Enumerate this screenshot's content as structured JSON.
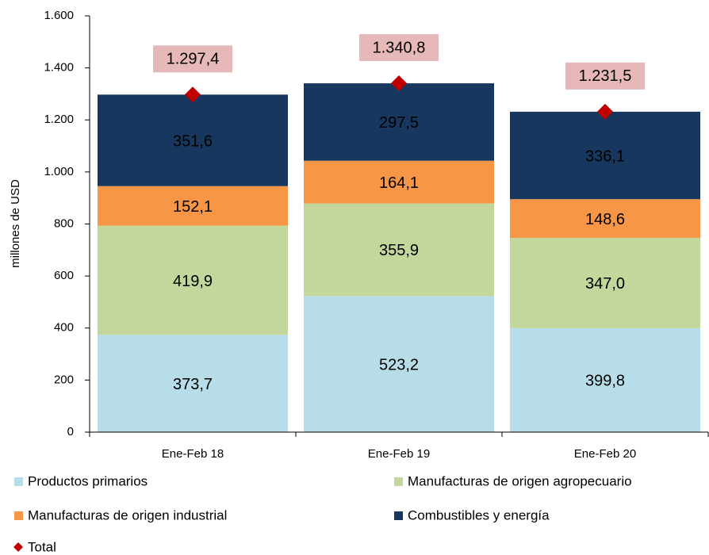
{
  "chart_data": {
    "type": "stacked-bar",
    "y_label": "millones de USD",
    "categories": [
      "Ene-Feb 18",
      "Ene-Feb 19",
      "Ene-Feb 20"
    ],
    "series": [
      {
        "name": "Productos primarios",
        "color": "#b7dde8",
        "values": [
          373.7,
          523.2,
          399.8
        ],
        "value_labels": [
          "373,7",
          "523,2",
          "399,8"
        ]
      },
      {
        "name": "Manufacturas de origen agropecuario",
        "color": "#c3d69b",
        "values": [
          419.9,
          355.9,
          347.0
        ],
        "value_labels": [
          "419,9",
          "355,9",
          "347,0"
        ]
      },
      {
        "name": "Manufacturas de origen industrial",
        "color": "#f79646",
        "values": [
          152.1,
          164.1,
          148.6
        ],
        "value_labels": [
          "152,1",
          "164,1",
          "148,6"
        ]
      },
      {
        "name": "Combustibles y energía",
        "color": "#17375e",
        "values": [
          351.6,
          297.5,
          336.1
        ],
        "value_labels": [
          "351,6",
          "297,5",
          "336,1"
        ]
      },
      {
        "name": "Total",
        "type": "marker",
        "color": "#c00000",
        "values": [
          1297.4,
          1340.8,
          1231.5
        ],
        "value_labels": [
          "1.297,4",
          "1.340,8",
          "1.231,5"
        ]
      }
    ],
    "ylim": [
      0,
      1600
    ],
    "yticks": [
      0,
      200,
      400,
      600,
      800,
      {
        "value": 1000,
        "label": "1.000"
      },
      {
        "value": 1200,
        "label": "1.200"
      },
      {
        "value": 1400,
        "label": "1.400"
      },
      {
        "value": 1600,
        "label": "1.600"
      }
    ]
  }
}
